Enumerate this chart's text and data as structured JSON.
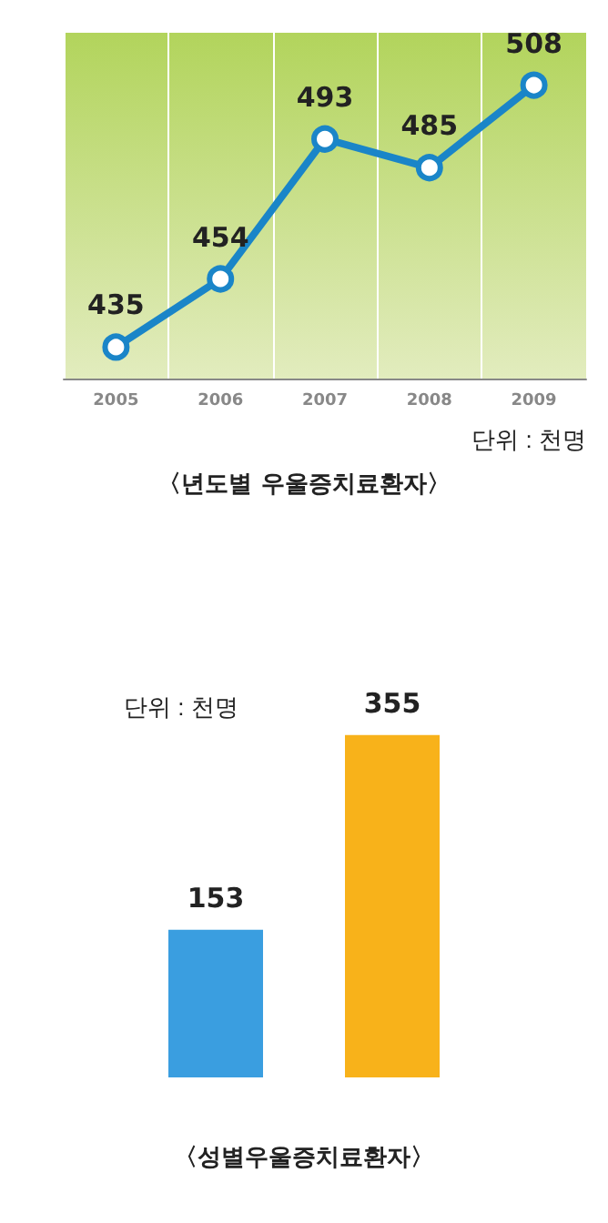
{
  "chart_data": [
    {
      "type": "line",
      "title": "〈년도별 우울증치료환자〉",
      "annotations": [
        "단위 : 천명"
      ],
      "categories": [
        "2005",
        "2006",
        "2007",
        "2008",
        "2009"
      ],
      "series": [
        {
          "color": "#1a85c8",
          "values": [
            435,
            454,
            493,
            485,
            508
          ]
        }
      ],
      "data_labels": true,
      "marker": "circle",
      "grid": "x",
      "tick_labels": "x"
    },
    {
      "type": "bar",
      "title": "〈성별우울증치료환자〉",
      "annotations": [
        "단위 : 천명"
      ],
      "categories": [
        null,
        null
      ],
      "values": [
        153,
        355
      ],
      "colors": [
        "#3a9ee0",
        "#f8b21a"
      ],
      "data_labels": true,
      "relative": false,
      "tick_labels": false
    }
  ]
}
